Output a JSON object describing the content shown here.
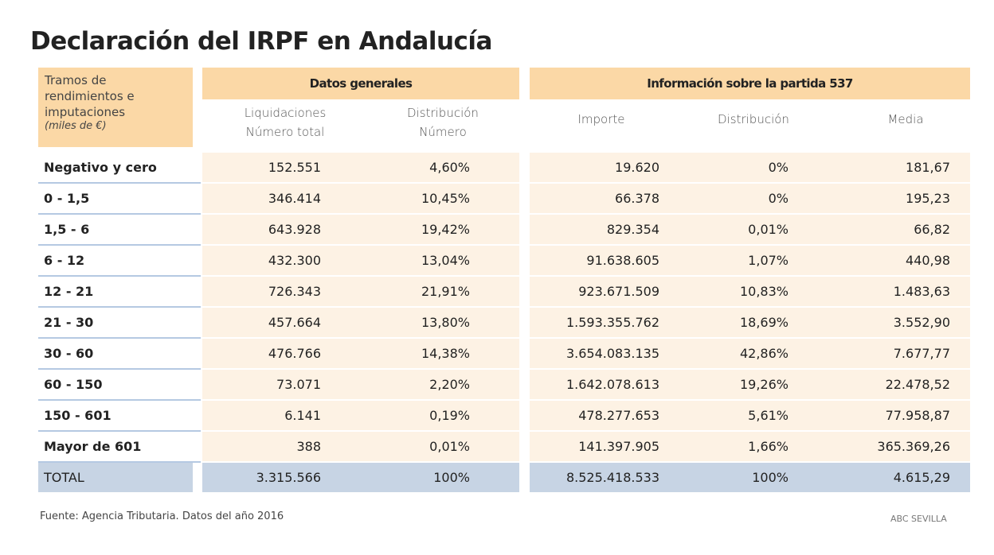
{
  "title": "Declaración del IRPF en Andalucía",
  "table": {
    "row_header": [
      "Tramos de",
      "rendimientos e",
      "imputaciones",
      "(miles de €)"
    ],
    "groups": [
      "Datos generales",
      "Información sobre la partida 537"
    ],
    "columns": [
      [
        "Liquidaciones",
        "Número total"
      ],
      [
        "Distribución",
        "Número"
      ],
      [
        "Importe"
      ],
      [
        "Distribución"
      ],
      [
        "Media"
      ]
    ],
    "rows": [
      [
        "Negativo y cero",
        "152.551",
        "4,60%",
        "19.620",
        "0%",
        "181,67"
      ],
      [
        "0 - 1,5",
        "346.414",
        "10,45%",
        "66.378",
        "0%",
        "195,23"
      ],
      [
        "1,5 - 6",
        "643.928",
        "19,42%",
        "829.354",
        "0,01%",
        "66,82"
      ],
      [
        "6 - 12",
        "432.300",
        "13,04%",
        "91.638.605",
        "1,07%",
        "440,98"
      ],
      [
        "12 - 21",
        "726.343",
        "21,91%",
        "923.671.509",
        "10,83%",
        "1.483,63"
      ],
      [
        "21 - 30",
        "457.664",
        "13,80%",
        "1.593.355.762",
        "18,69%",
        "3.552,90"
      ],
      [
        "30 - 60",
        "476.766",
        "14,38%",
        "3.654.083.135",
        "42,86%",
        "7.677,77"
      ],
      [
        "60 - 150",
        "73.071",
        "2,20%",
        "1.642.078.613",
        "19,26%",
        "22.478,52"
      ],
      [
        "150 - 601",
        "6.141",
        "0,19%",
        "478.277.653",
        "5,61%",
        "77.958,87"
      ],
      [
        "Mayor de 601",
        "388",
        "0,01%",
        "141.397.905",
        "1,66%",
        "365.369,26"
      ]
    ],
    "total": [
      "TOTAL",
      "3.315.566",
      "100%",
      "8.525.418.533",
      "100%",
      "4.615,29"
    ]
  },
  "source": "Fuente: Agencia Tributaria. Datos del año 2016",
  "credit": "ABC SEVILLA"
}
